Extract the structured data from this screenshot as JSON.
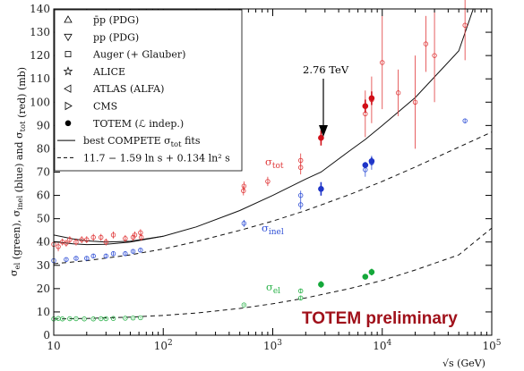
{
  "chart_data": {
    "type": "scatter",
    "title": "",
    "ylabel": "σ_el (green), σ_inel (blue) and σ_tot (red)   (mb)",
    "xlabel": "√s   (GeV)",
    "x_scale": "log",
    "xlim": [
      10,
      100000
    ],
    "ylim": [
      0,
      140
    ],
    "x_ticks": [
      "10",
      "10^2",
      "10^3",
      "10^4",
      "10^5"
    ],
    "y_ticks": [
      "0",
      "10",
      "20",
      "30",
      "40",
      "50",
      "60",
      "70",
      "80",
      "90",
      "100",
      "110",
      "120",
      "130",
      "140"
    ],
    "legend_position": "top-left",
    "legend": [
      {
        "symbol": "triangle-up",
        "label": "p̄p (PDG)"
      },
      {
        "symbol": "triangle-down",
        "label": "pp (PDG)"
      },
      {
        "symbol": "square",
        "label": "Auger (+ Glauber)"
      },
      {
        "symbol": "star",
        "label": "ALICE"
      },
      {
        "symbol": "triangle-left",
        "label": "ATLAS (ALFA)"
      },
      {
        "symbol": "triangle-right",
        "label": "CMS"
      },
      {
        "symbol": "filled-circle",
        "label": "TOTEM (ℒ indep.)"
      },
      {
        "symbol": "solid-line",
        "label": "best COMPETE σ_tot fits"
      },
      {
        "symbol": "dashed-line",
        "label": "11.7 − 1.59 ln s + 0.134 ln² s"
      }
    ],
    "annotations": {
      "energy_label": "2.76 TeV",
      "sigma_tot": "σ_tot",
      "sigma_inel": "σ_inel",
      "sigma_el": "σ_el",
      "preliminary": "TOTEM preliminary"
    },
    "colors": {
      "tot": "#e0393a",
      "inel": "#2f4fd6",
      "el": "#2bb24a",
      "totem_tot": "#d10f18",
      "totem_inel": "#1f35c8",
      "totem_el": "#14a83a",
      "preliminary": "#a0101a"
    },
    "series": [
      {
        "name": "σ_tot",
        "color_key": "tot",
        "points": [
          [
            10,
            39
          ],
          [
            11,
            38
          ],
          [
            12,
            40
          ],
          [
            13,
            39.5
          ],
          [
            14,
            41
          ],
          [
            16,
            40
          ],
          [
            18,
            41
          ],
          [
            20,
            41
          ],
          [
            23,
            42
          ],
          [
            27,
            42
          ],
          [
            30,
            40
          ],
          [
            35,
            43
          ],
          [
            45,
            41.5
          ],
          [
            53,
            42
          ],
          [
            55,
            43
          ],
          [
            62,
            44
          ],
          [
            63,
            42
          ],
          [
            540,
            62
          ],
          [
            546,
            64
          ],
          [
            900,
            66
          ],
          [
            1800,
            72
          ],
          [
            1800,
            75
          ],
          [
            7000,
            95
          ],
          [
            8000,
            101
          ],
          [
            10000,
            117
          ],
          [
            14000,
            104
          ],
          [
            20000,
            100
          ],
          [
            25000,
            125
          ],
          [
            30000,
            120
          ],
          [
            57000,
            133
          ]
        ],
        "errors": [
          2,
          2,
          1.5,
          1.5,
          1.5,
          1.5,
          1.5,
          1.5,
          1.5,
          1.5,
          1.5,
          1.5,
          1.5,
          1.5,
          1.5,
          1.5,
          1.5,
          2,
          2,
          2,
          3,
          3,
          10,
          10,
          20,
          10,
          20,
          12,
          20,
          15
        ]
      },
      {
        "name": "σ_inel",
        "color_key": "inel",
        "points": [
          [
            10,
            32
          ],
          [
            13,
            32.5
          ],
          [
            16,
            33
          ],
          [
            20,
            33
          ],
          [
            23,
            34
          ],
          [
            30,
            34
          ],
          [
            35,
            35
          ],
          [
            45,
            35
          ],
          [
            53,
            36
          ],
          [
            62,
            36.5
          ],
          [
            546,
            48
          ],
          [
            1800,
            56
          ],
          [
            1800,
            60
          ],
          [
            7000,
            71
          ],
          [
            8000,
            74
          ],
          [
            57000,
            92
          ]
        ],
        "errors": [
          0.8,
          0.8,
          0.8,
          0.8,
          0.8,
          0.8,
          0.8,
          0.8,
          0.8,
          0.8,
          1.5,
          2,
          2,
          3,
          3,
          1
        ]
      },
      {
        "name": "σ_el",
        "color_key": "el",
        "points": [
          [
            10,
            7
          ],
          [
            11,
            7.2
          ],
          [
            12,
            7
          ],
          [
            14,
            7.1
          ],
          [
            16,
            7.1
          ],
          [
            19,
            7
          ],
          [
            23,
            7
          ],
          [
            27,
            7.1
          ],
          [
            30,
            7.1
          ],
          [
            35,
            7.2
          ],
          [
            45,
            7.3
          ],
          [
            53,
            7.4
          ],
          [
            62,
            7.5
          ],
          [
            546,
            13
          ],
          [
            1800,
            16
          ],
          [
            1800,
            19
          ],
          [
            7000,
            25
          ],
          [
            8000,
            27
          ]
        ],
        "errors": [
          0.3,
          0.3,
          0.3,
          0.3,
          0.3,
          0.3,
          0.3,
          0.3,
          0.3,
          0.3,
          0.3,
          0.3,
          0.3,
          0.4,
          1,
          1,
          1,
          1
        ]
      },
      {
        "name": "TOTEM σ_tot",
        "color_key": "totem_tot",
        "points": [
          [
            2760,
            84.7
          ],
          [
            7000,
            98.3
          ],
          [
            8000,
            101.7
          ]
        ],
        "errors": [
          3.3,
          2.8,
          2.9
        ]
      },
      {
        "name": "TOTEM σ_inel",
        "color_key": "totem_inel",
        "points": [
          [
            2760,
            62.8
          ],
          [
            7000,
            73
          ],
          [
            8000,
            74.7
          ]
        ],
        "errors": [
          2.9,
          1.3,
          1.7
        ]
      },
      {
        "name": "TOTEM σ_el",
        "color_key": "totem_el",
        "points": [
          [
            2760,
            21.8
          ],
          [
            7000,
            25.1
          ],
          [
            8000,
            27.1
          ]
        ],
        "errors": [
          1.4,
          1.1,
          1.4
        ]
      }
    ],
    "curves": [
      {
        "name": "compete_tot",
        "style": "solid",
        "x": [
          10,
          15,
          20,
          30,
          50,
          100,
          200,
          500,
          1000,
          2000,
          2760,
          5000,
          7000,
          10000,
          20000,
          50000,
          70000
        ],
        "y": [
          40.2,
          39.2,
          38.9,
          39.0,
          40.0,
          42.5,
          46.5,
          53.5,
          60.0,
          67.0,
          70.0,
          79.0,
          84.0,
          90.0,
          102.0,
          122.0,
          142.0
        ]
      },
      {
        "name": "compete_tot_low",
        "style": "solid",
        "x": [
          10,
          15,
          20,
          30,
          50,
          100
        ],
        "y": [
          43.0,
          41.3,
          40.5,
          40.0,
          40.3,
          42.5
        ]
      },
      {
        "name": "fit_inel",
        "style": "dashed",
        "x": [
          10,
          20,
          50,
          100,
          200,
          500,
          1000,
          2000,
          5000,
          10000,
          20000,
          50000,
          100000
        ],
        "y": [
          30.7,
          32.0,
          34.5,
          37.0,
          40.2,
          45.0,
          49.0,
          53.5,
          60.3,
          66.0,
          72.2,
          80.7,
          87.2
        ]
      },
      {
        "name": "fit_el",
        "style": "dashed",
        "x": [
          10,
          20,
          50,
          100,
          200,
          500,
          1000,
          2000,
          5000,
          10000,
          20000,
          50000,
          100000
        ],
        "y": [
          7.0,
          7.2,
          7.8,
          8.5,
          9.5,
          11.5,
          13.5,
          16.0,
          20.0,
          23.5,
          28.0,
          34.5,
          46.0
        ]
      }
    ]
  }
}
